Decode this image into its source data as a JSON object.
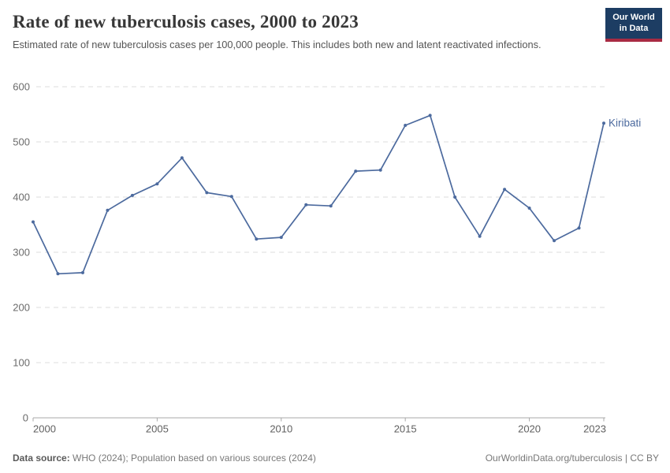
{
  "header": {
    "title": "Rate of new tuberculosis cases, 2000 to 2023",
    "subtitle": "Estimated rate of new tuberculosis cases per 100,000 people. This includes both new and latent reactivated infections."
  },
  "logo": {
    "line1": "Our World",
    "line2": "in Data",
    "bg_color": "#1d3d63",
    "accent_color": "#a82b43"
  },
  "chart_data": {
    "type": "line",
    "title": "Rate of new tuberculosis cases, 2000 to 2023",
    "xlabel": "",
    "ylabel": "",
    "x": [
      2000,
      2001,
      2002,
      2003,
      2004,
      2005,
      2006,
      2007,
      2008,
      2009,
      2010,
      2011,
      2012,
      2013,
      2014,
      2015,
      2016,
      2017,
      2018,
      2019,
      2020,
      2021,
      2022,
      2023
    ],
    "series": [
      {
        "name": "Kiribati",
        "color": "#4c6a9e",
        "values": [
          355,
          261,
          263,
          376,
          403,
          424,
          471,
          408,
          401,
          324,
          327,
          386,
          384,
          447,
          449,
          530,
          548,
          400,
          329,
          414,
          380,
          321,
          344,
          534
        ]
      }
    ],
    "ylim": [
      0,
      600
    ],
    "yticks": [
      0,
      100,
      200,
      300,
      400,
      500,
      600
    ],
    "xticks": [
      2000,
      2005,
      2010,
      2015,
      2020,
      2023
    ],
    "grid": "horizontal-dashed",
    "legend_position": "end-of-line-label",
    "end_label": "Kiribati",
    "colors": {
      "gridline": "#dcdcdc",
      "axis": "#a8a8a8",
      "tick_label": "#6b6b6b",
      "line": "#4c6a9e"
    }
  },
  "footer": {
    "datasource_label": "Data source:",
    "datasource_text": " WHO (2024); Population based on various sources (2024)",
    "link": "OurWorldinData.org/tuberculosis | CC BY"
  }
}
